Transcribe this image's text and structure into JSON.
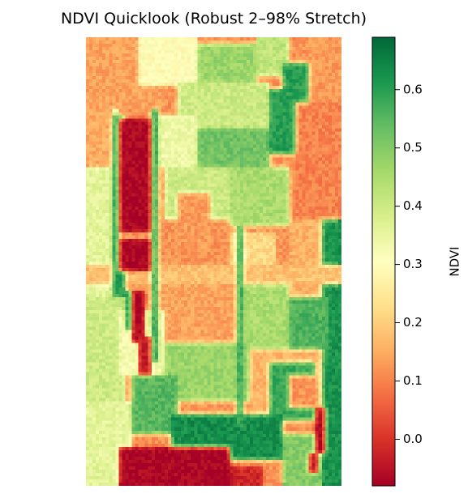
{
  "chart_data": {
    "type": "heatmap",
    "title": "NDVI Quicklook (Robust 2–98% Stretch)",
    "colormap": "RdYlGn",
    "colormap_stops": [
      "#a50026",
      "#d73027",
      "#f46d43",
      "#fdae61",
      "#fee08b",
      "#ffffbf",
      "#d9ef8b",
      "#a6d96a",
      "#66bd63",
      "#1a9850",
      "#006837"
    ],
    "colorbar": {
      "label": "NDVI",
      "vmin": -0.08,
      "vmax": 0.69,
      "ticks": [
        0.0,
        0.1,
        0.2,
        0.3,
        0.4,
        0.5,
        0.6
      ],
      "tick_labels": [
        "0.0",
        "0.1",
        "0.2",
        "0.3",
        "0.4",
        "0.5",
        "0.6"
      ]
    },
    "grid": false,
    "axes_visible": false,
    "raster": {
      "rows": 138,
      "cols": 78,
      "background_ndvi": 0.12,
      "regions": [
        {
          "shape": "rect",
          "r0": 0,
          "r1": 138,
          "c0": 0,
          "c1": 10,
          "v": 0.36
        },
        {
          "shape": "rect",
          "r0": 0,
          "r1": 22,
          "c0": 0,
          "c1": 24,
          "v": 0.14
        },
        {
          "shape": "rect",
          "r0": 0,
          "r1": 15,
          "c0": 16,
          "c1": 34,
          "v": 0.3
        },
        {
          "shape": "rect",
          "r0": 2,
          "r1": 14,
          "c0": 34,
          "c1": 52,
          "v": 0.47
        },
        {
          "shape": "rect",
          "r0": 0,
          "r1": 12,
          "c0": 52,
          "c1": 62,
          "v": 0.42
        },
        {
          "shape": "rect",
          "r0": 8,
          "r1": 20,
          "c0": 60,
          "c1": 70,
          "v": 0.6
        },
        {
          "shape": "rect",
          "r0": 0,
          "r1": 20,
          "c0": 68,
          "c1": 78,
          "v": 0.13
        },
        {
          "shape": "rect",
          "r0": 16,
          "r1": 36,
          "c0": 56,
          "c1": 66,
          "v": 0.6
        },
        {
          "shape": "rect",
          "r0": 20,
          "r1": 58,
          "c0": 64,
          "c1": 78,
          "v": 0.1
        },
        {
          "shape": "rect",
          "r0": 14,
          "r1": 30,
          "c0": 28,
          "c1": 56,
          "v": 0.4
        },
        {
          "shape": "rect",
          "r0": 28,
          "r1": 40,
          "c0": 34,
          "c1": 56,
          "v": 0.52
        },
        {
          "shape": "rect",
          "r0": 24,
          "r1": 40,
          "c0": 22,
          "c1": 34,
          "v": 0.34
        },
        {
          "shape": "rect",
          "r0": 40,
          "r1": 56,
          "c0": 24,
          "c1": 44,
          "v": 0.4
        },
        {
          "shape": "rect",
          "r0": 48,
          "r1": 66,
          "c0": 28,
          "c1": 38,
          "v": 0.13
        },
        {
          "shape": "rect",
          "r0": 40,
          "r1": 58,
          "c0": 44,
          "c1": 62,
          "v": 0.45
        },
        {
          "shape": "rect",
          "r0": 60,
          "r1": 72,
          "c0": 44,
          "c1": 58,
          "v": 0.22
        },
        {
          "shape": "rect",
          "r0": 56,
          "r1": 80,
          "c0": 62,
          "c1": 74,
          "v": 0.16
        },
        {
          "shape": "rect",
          "r0": 56,
          "r1": 138,
          "c0": 72,
          "c1": 78,
          "v": 0.62
        },
        {
          "shape": "rect",
          "r0": 22,
          "r1": 40,
          "c0": 0,
          "c1": 8,
          "v": 0.15
        },
        {
          "shape": "rect",
          "r0": 40,
          "r1": 66,
          "c0": 8,
          "c1": 20,
          "v": 0.36
        },
        {
          "shape": "rect",
          "r0": 58,
          "r1": 74,
          "c0": 10,
          "c1": 22,
          "v": 0.15
        },
        {
          "shape": "rect",
          "r0": 72,
          "r1": 96,
          "c0": 22,
          "c1": 46,
          "v": 0.14
        },
        {
          "shape": "rect",
          "r0": 72,
          "r1": 96,
          "c0": 46,
          "c1": 62,
          "v": 0.45
        },
        {
          "shape": "rect",
          "r0": 80,
          "r1": 100,
          "c0": 62,
          "c1": 74,
          "v": 0.56
        },
        {
          "shape": "rect",
          "r0": 94,
          "r1": 112,
          "c0": 22,
          "c1": 50,
          "v": 0.47
        },
        {
          "shape": "rect",
          "r0": 96,
          "r1": 118,
          "c0": 50,
          "c1": 72,
          "v": 0.16
        },
        {
          "shape": "rect",
          "r0": 100,
          "r1": 118,
          "c0": 56,
          "c1": 70,
          "v": 0.58
        },
        {
          "shape": "rect",
          "r0": 80,
          "r1": 114,
          "c0": 0,
          "c1": 12,
          "v": 0.4
        },
        {
          "shape": "rect",
          "r0": 84,
          "r1": 104,
          "c0": 10,
          "c1": 24,
          "v": 0.33
        },
        {
          "shape": "rect",
          "r0": 104,
          "r1": 122,
          "c0": 14,
          "c1": 28,
          "v": 0.55
        },
        {
          "shape": "rect",
          "r0": 112,
          "r1": 138,
          "c0": 0,
          "c1": 14,
          "v": 0.36
        },
        {
          "shape": "rect",
          "r0": 116,
          "r1": 130,
          "c0": 26,
          "c1": 60,
          "v": 0.63
        },
        {
          "shape": "rect",
          "r0": 122,
          "r1": 138,
          "c0": 60,
          "c1": 72,
          "v": 0.5
        },
        {
          "shape": "rect",
          "r0": 104,
          "r1": 114,
          "c0": 62,
          "c1": 70,
          "v": 0.12
        },
        {
          "shape": "rect",
          "r0": 70,
          "r1": 76,
          "c0": 0,
          "c1": 78,
          "v": 0.18
        },
        {
          "shape": "rect",
          "r0": 22,
          "r1": 100,
          "c0": 20,
          "c1": 22,
          "v": 0.6
        },
        {
          "shape": "rect",
          "r0": 58,
          "r1": 120,
          "c0": 46,
          "c1": 48,
          "v": 0.58
        },
        {
          "shape": "rect",
          "r0": 24,
          "r1": 80,
          "c0": 8,
          "c1": 12,
          "v": 0.6
        },
        {
          "shape": "rect",
          "r0": 78,
          "r1": 90,
          "c0": 12,
          "c1": 14,
          "v": 0.6
        },
        {
          "shape": "rect",
          "r0": 25,
          "r1": 72,
          "c0": 10,
          "c1": 20,
          "v": -0.07
        },
        {
          "shape": "rect",
          "r0": 60,
          "r1": 62,
          "c0": 10,
          "c1": 20,
          "v": 0.15
        },
        {
          "shape": "rect",
          "r0": 78,
          "r1": 94,
          "c0": 14,
          "c1": 18,
          "v": -0.07
        },
        {
          "shape": "rect",
          "r0": 92,
          "r1": 104,
          "c0": 16,
          "c1": 20,
          "v": -0.04
        },
        {
          "shape": "rect",
          "r0": 126,
          "r1": 138,
          "c0": 10,
          "c1": 44,
          "v": -0.07
        },
        {
          "shape": "rect",
          "r0": 132,
          "r1": 138,
          "c0": 44,
          "c1": 54,
          "v": -0.02
        },
        {
          "shape": "rect",
          "r0": 114,
          "r1": 128,
          "c0": 70,
          "c1": 73,
          "v": -0.06
        },
        {
          "shape": "rect",
          "r0": 128,
          "r1": 134,
          "c0": 68,
          "c1": 71,
          "v": -0.04
        }
      ]
    }
  }
}
